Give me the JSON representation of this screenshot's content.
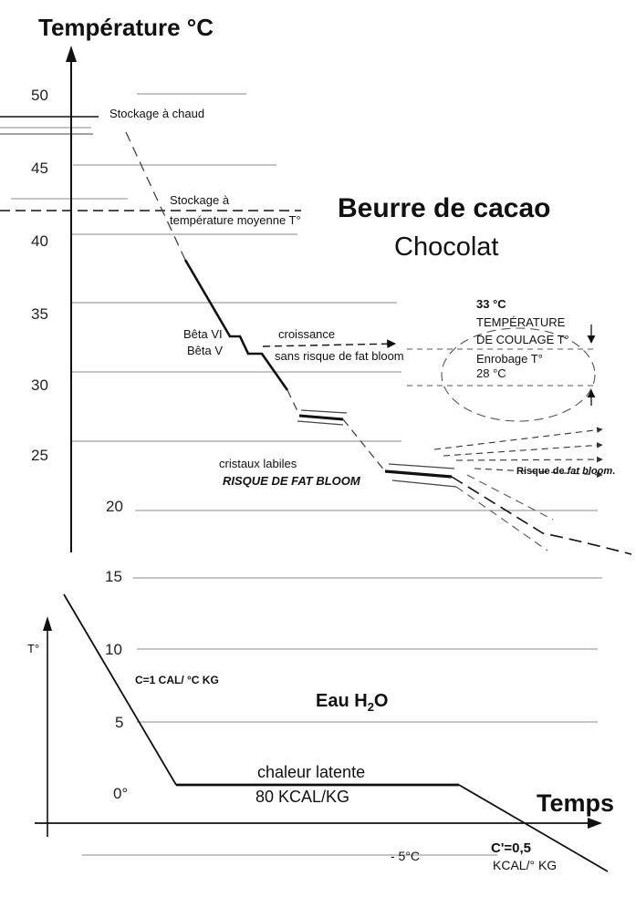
{
  "top_axis": {
    "title": "Température °C",
    "ticks": [
      "50",
      "45",
      "40",
      "35",
      "30",
      "25",
      "20"
    ]
  },
  "bottom_axis": {
    "y_label": "T°",
    "ticks": [
      "15",
      "10",
      "5",
      "0°",
      "- 5°C"
    ],
    "x_label": "Temps"
  },
  "headline": {
    "line1": "Beurre de cacao",
    "line2": "Chocolat"
  },
  "annotations": {
    "hot_storage": "Stockage à chaud",
    "mid_storage_1": "Stockage à",
    "mid_storage_2": "température moyenne T°",
    "beta_vi": "Bêta VI",
    "beta_v": "Bêta V",
    "growth_1": "croissance",
    "growth_2": "sans risque de fat bloom",
    "pour_temp_value": "33 °C",
    "pour_temp_1": "TEMPÉRATURE",
    "pour_temp_2": "DE COULAGE T°",
    "coating_1": "Enrobage T°",
    "coating_2": "28 °C",
    "labile_1": "cristaux labiles",
    "labile_2": "RISQUE DE FAT BLOOM",
    "bloom_risk_prefix": "Risque de ",
    "bloom_risk_term": "fat bloom",
    "bloom_risk_suffix": "."
  },
  "water": {
    "title_prefix": "Eau H",
    "title_sub": "2",
    "title_suffix": "O",
    "specific_heat": "C=1 CAL/ °C KG",
    "latent_1": "chaleur latente",
    "latent_2": "80 KCAL/KG",
    "ice_heat_1": "C'=0,5",
    "ice_heat_2": "KCAL/° KG"
  },
  "colors": {
    "ink": "#111111",
    "grid": "#8a8a8a",
    "dash": "#444444"
  }
}
